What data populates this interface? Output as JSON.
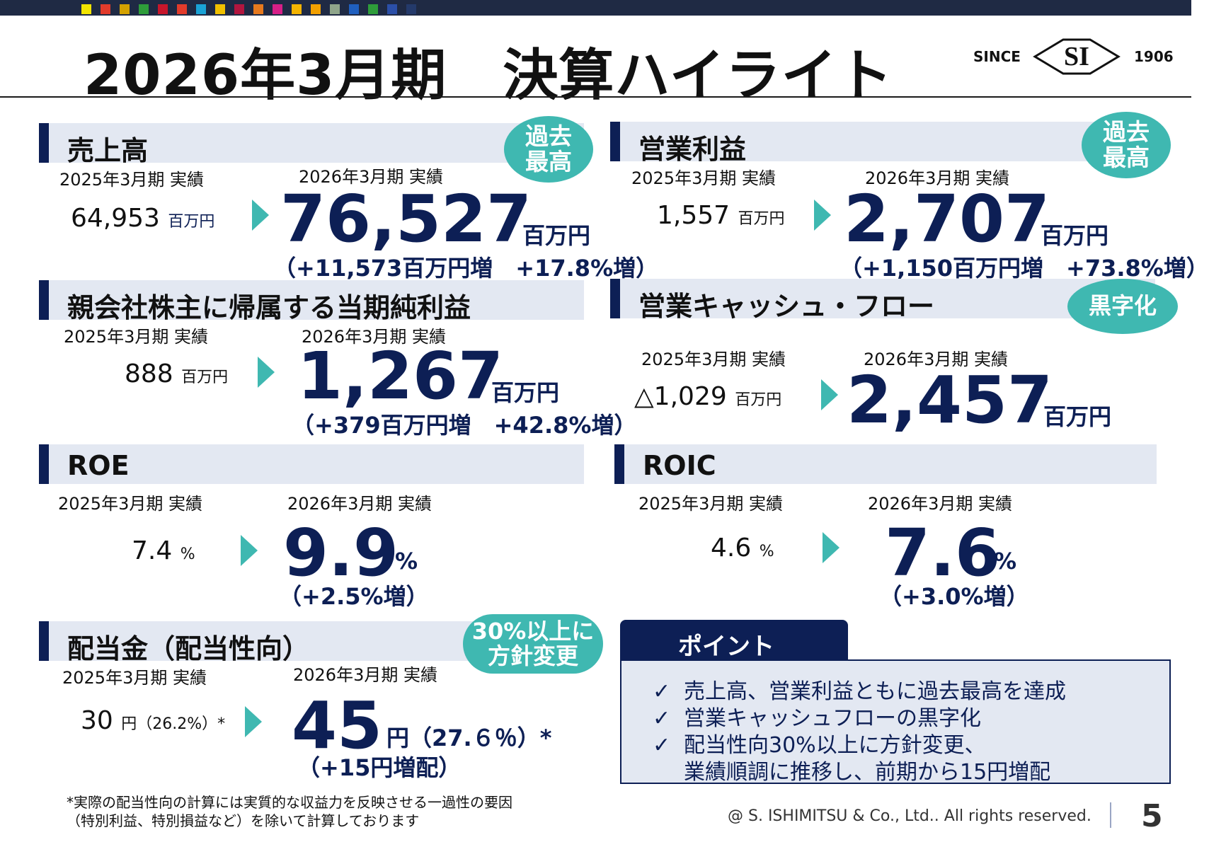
{
  "page": {
    "title": "2026年3月期　決算ハイライト",
    "page_number": "5",
    "copyright": "@ S. ISHIMITSU & Co., Ltd.. All rights reserved."
  },
  "logo": {
    "since": "SINCE",
    "mark": "SI",
    "year": "1906"
  },
  "top_swatches": [
    "#f2e400",
    "#e23b2b",
    "#d4a100",
    "#2e9c3a",
    "#c7162b",
    "#e23b2b",
    "#1aa2d6",
    "#f0c000",
    "#b2163f",
    "#e6791e",
    "#d61f87",
    "#f3b300",
    "#f2a000",
    "#8fa58a",
    "#1f5fbf",
    "#2e9c3a",
    "#2b4fa8",
    "#243a6b"
  ],
  "sections": {
    "sales": {
      "heading": "売上高",
      "badge_line1": "過去",
      "badge_line2": "最高",
      "prev_label": "2025年3月期 実績",
      "cur_label": "2026年3月期 実績",
      "prev_value": "64,953",
      "prev_unit": "百万円",
      "cur_value": "76,527",
      "cur_unit": "百万円",
      "delta": "（+11,573百万円増　+17.8%増）"
    },
    "operating_income": {
      "heading": "営業利益",
      "badge_line1": "過去",
      "badge_line2": "最高",
      "prev_label": "2025年3月期 実績",
      "cur_label": "2026年3月期 実績",
      "prev_value": "1,557",
      "prev_unit": "百万円",
      "cur_value": "2,707",
      "cur_unit": "百万円",
      "delta": "（+1,150百万円増　+73.8%増）"
    },
    "net_income": {
      "heading": "親会社株主に帰属する当期純利益",
      "prev_label": "2025年3月期 実績",
      "cur_label": "2026年3月期 実績",
      "prev_value": "888",
      "prev_unit": "百万円",
      "cur_value": "1,267",
      "cur_unit": "百万円",
      "delta": "（+379百万円増　+42.8%増）"
    },
    "operating_cf": {
      "heading": "営業キャッシュ・フロー",
      "badge": "黒字化",
      "prev_label": "2025年3月期 実績",
      "cur_label": "2026年3月期 実績",
      "prev_value": "△1,029",
      "prev_unit": "百万円",
      "cur_value": "2,457",
      "cur_unit": "百万円"
    },
    "roe": {
      "heading": "ROE",
      "prev_label": "2025年3月期 実績",
      "cur_label": "2026年3月期 実績",
      "prev_value": "7.4",
      "prev_unit": "%",
      "cur_value": "9.9",
      "cur_unit": "%",
      "delta": "（+2.5%増）"
    },
    "roic": {
      "heading": "ROIC",
      "prev_label": "2025年3月期 実績",
      "cur_label": "2026年3月期 実績",
      "prev_value": "4.6",
      "prev_unit": "%",
      "cur_value": "7.6",
      "cur_unit": "%",
      "delta": "（+3.0%増）"
    },
    "dividend": {
      "heading": "配当金（配当性向）",
      "badge_line1": "30%以上に",
      "badge_line2": "方針変更",
      "prev_label": "2025年3月期 実績",
      "cur_label": "2026年3月期 実績",
      "prev_value": "30",
      "prev_unit": "円（26.2%）*",
      "cur_value": "45",
      "cur_unit": "円（27.６％）*",
      "delta": "（+15円増配）"
    }
  },
  "points": {
    "title": "ポイント",
    "check": "✓",
    "items": [
      "売上高、営業利益ともに過去最高を達成",
      "営業キャッシュフローの黒字化",
      "配当性向30%以上に方針変更、"
    ],
    "continuation": "業績順調に推移し、前期から15円増配"
  },
  "footnote": {
    "line1": "*実際の配当性向の計算には実質的な収益力を反映させる一過性の要因",
    "line2": "（特別利益、特別損益など）を除いて計算しております"
  }
}
